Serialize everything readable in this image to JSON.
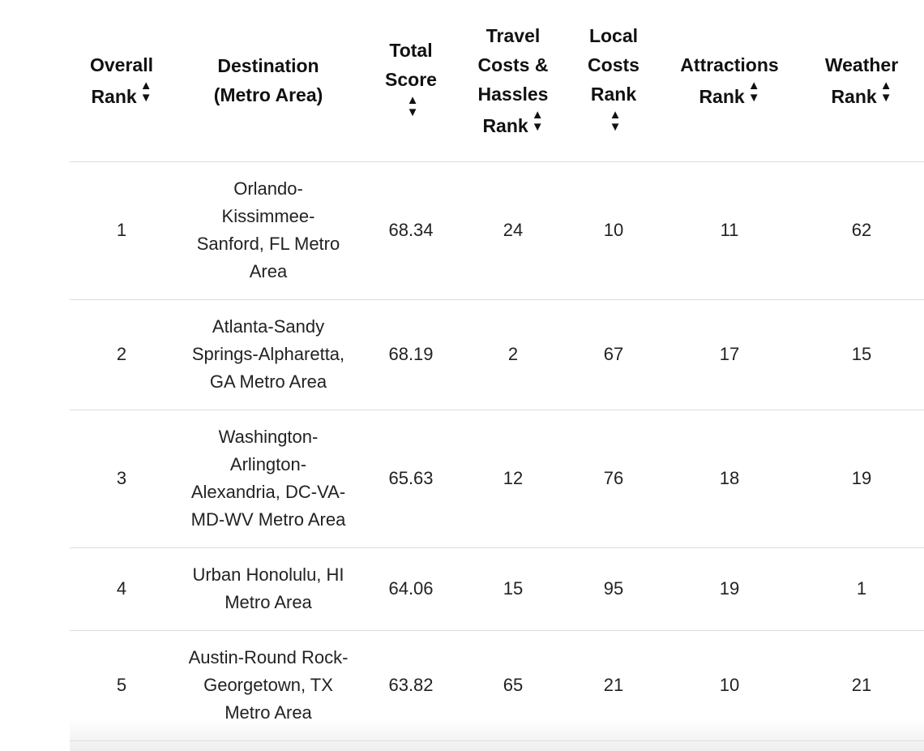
{
  "table": {
    "headers": [
      {
        "label": "Overall Rank",
        "sortable": true
      },
      {
        "label": "Destination (Metro Area)",
        "sortable": false
      },
      {
        "label": "Total Score",
        "sortable": true
      },
      {
        "label": "Travel Costs & Hassles Rank",
        "sortable": true
      },
      {
        "label": "Local Costs Rank",
        "sortable": true
      },
      {
        "label": "Attractions Rank",
        "sortable": true
      },
      {
        "label": "Weather Rank",
        "sortable": true
      }
    ],
    "sort_icon": "sort-both-icon",
    "rows": [
      {
        "rank": "1",
        "destination": "Orlando-Kissimmee-Sanford, FL Metro Area",
        "total_score": "68.34",
        "travel": "24",
        "local": "10",
        "attractions": "11",
        "weather": "62"
      },
      {
        "rank": "2",
        "destination": "Atlanta-Sandy Springs-Alpharetta, GA Metro Area",
        "total_score": "68.19",
        "travel": "2",
        "local": "67",
        "attractions": "17",
        "weather": "15"
      },
      {
        "rank": "3",
        "destination": "Washington-Arlington-Alexandria, DC-VA-MD-WV Metro Area",
        "total_score": "65.63",
        "travel": "12",
        "local": "76",
        "attractions": "18",
        "weather": "19"
      },
      {
        "rank": "4",
        "destination": "Urban Honolulu, HI Metro Area",
        "total_score": "64.06",
        "travel": "15",
        "local": "95",
        "attractions": "19",
        "weather": "1"
      },
      {
        "rank": "5",
        "destination": "Austin-Round Rock-Georgetown, TX Metro Area",
        "total_score": "63.82",
        "travel": "65",
        "local": "21",
        "attractions": "10",
        "weather": "21"
      }
    ]
  }
}
